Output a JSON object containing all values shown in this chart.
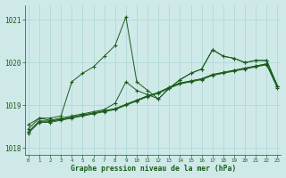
{
  "background_color": "#cfe9e9",
  "grid_color": "#b0d8d8",
  "line_color": "#1a5c1a",
  "title": "Graphe pression niveau de la mer (hPa)",
  "ylim": [
    1017.85,
    1021.35
  ],
  "yticks": [
    1018,
    1019,
    1020,
    1021
  ],
  "xlim": [
    -0.3,
    23.3
  ],
  "xticks": [
    0,
    1,
    2,
    3,
    4,
    5,
    6,
    7,
    8,
    9,
    10,
    11,
    12,
    13,
    14,
    15,
    16,
    17,
    18,
    19,
    20,
    21,
    22,
    23
  ],
  "s1": [
    1018.55,
    1018.7,
    1018.7,
    1018.75,
    1019.55,
    1019.75,
    1019.9,
    1020.15,
    1020.4,
    1021.07,
    1019.55,
    1019.35,
    1019.15,
    1019.4,
    1019.6,
    1019.75,
    1019.85,
    1020.3,
    1020.15,
    1020.1,
    1020.0,
    1020.05,
    1020.05,
    1019.45
  ],
  "s2": [
    1018.45,
    1018.7,
    1018.65,
    1018.7,
    1018.75,
    1018.8,
    1018.85,
    1018.9,
    1019.05,
    1019.55,
    1019.35,
    1019.25,
    1019.15,
    1019.4,
    1019.6,
    1019.75,
    1019.85,
    1020.3,
    1020.15,
    1020.1,
    1020.0,
    1020.05,
    1020.05,
    1019.45
  ],
  "s3": [
    1018.38,
    1018.63,
    1018.63,
    1018.67,
    1018.72,
    1018.77,
    1018.82,
    1018.87,
    1018.92,
    1019.02,
    1019.12,
    1019.22,
    1019.3,
    1019.42,
    1019.52,
    1019.57,
    1019.62,
    1019.72,
    1019.77,
    1019.82,
    1019.87,
    1019.92,
    1019.97,
    1019.45
  ],
  "s4": [
    1018.38,
    1018.63,
    1018.63,
    1018.67,
    1018.72,
    1018.77,
    1018.82,
    1018.87,
    1018.92,
    1019.02,
    1019.12,
    1019.22,
    1019.3,
    1019.42,
    1019.52,
    1019.57,
    1019.62,
    1019.72,
    1019.77,
    1019.82,
    1019.87,
    1019.92,
    1019.97,
    1019.45
  ],
  "s5": [
    1018.35,
    1018.6,
    1018.6,
    1018.65,
    1018.7,
    1018.75,
    1018.8,
    1018.85,
    1018.9,
    1019.0,
    1019.1,
    1019.2,
    1019.28,
    1019.4,
    1019.5,
    1019.55,
    1019.6,
    1019.7,
    1019.75,
    1019.8,
    1019.85,
    1019.9,
    1019.95,
    1019.4
  ]
}
